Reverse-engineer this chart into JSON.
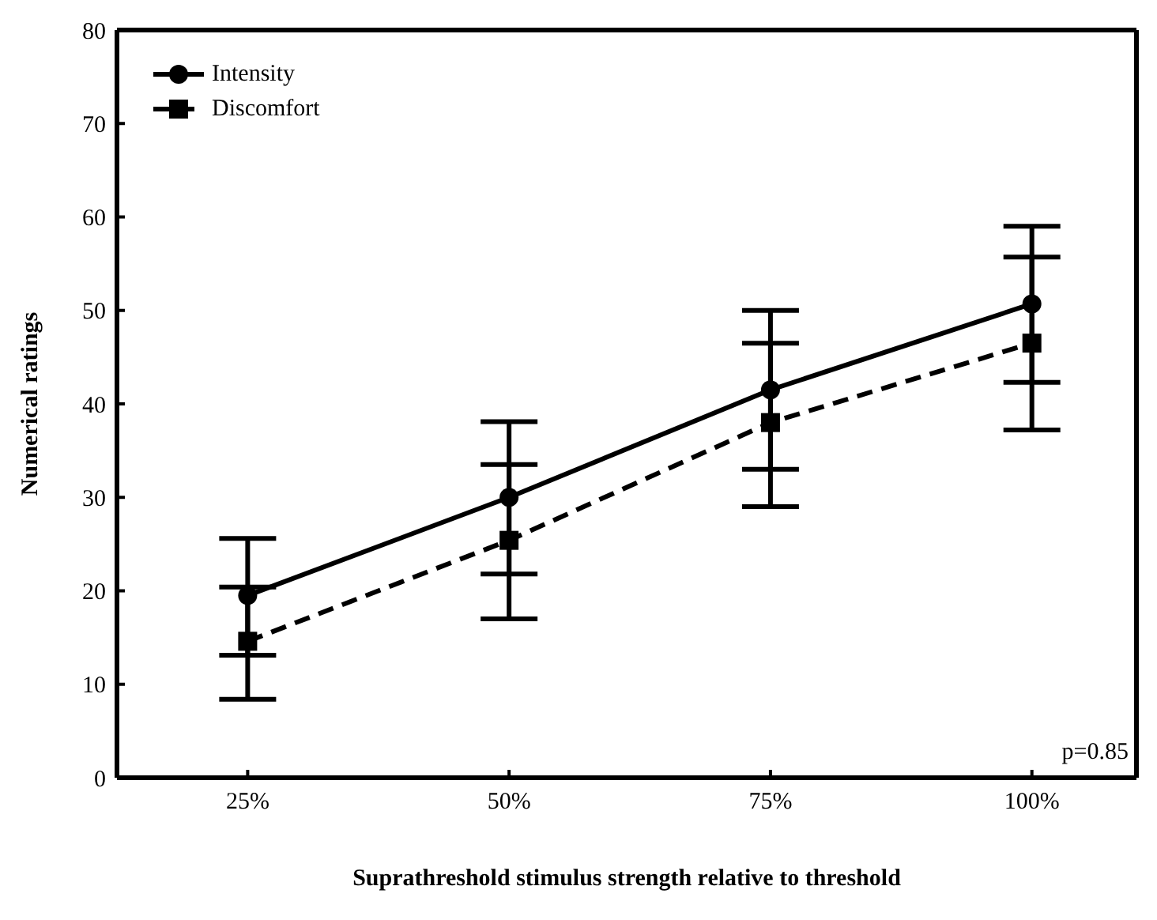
{
  "chart_data": {
    "type": "line",
    "xlabel": "Suprathreshold stimulus strength relative to threshold",
    "ylabel": "Numerical ratings",
    "categories": [
      "25%",
      "50%",
      "75%",
      "100%"
    ],
    "ylim": [
      0,
      80
    ],
    "yticks": [
      0,
      10,
      20,
      30,
      40,
      50,
      60,
      70,
      80
    ],
    "grid": false,
    "legend": "top left",
    "annotations": [
      "p=0.85"
    ],
    "series": [
      {
        "name": "Intensity",
        "color": "#000000",
        "marker": "circle",
        "line_style": "solid",
        "values": [
          19.5,
          30.0,
          41.5,
          50.7
        ],
        "errors": [
          [
            13.1,
            25.6
          ],
          [
            21.8,
            38.1
          ],
          [
            33.0,
            50.0
          ],
          [
            42.3,
            59.0
          ]
        ]
      },
      {
        "name": "Discomfort",
        "color": "#000000",
        "marker": "square",
        "line_style": "dashed",
        "values": [
          14.6,
          25.4,
          38.0,
          46.5
        ],
        "errors": [
          [
            8.4,
            20.4
          ],
          [
            17.0,
            33.5
          ],
          [
            29.0,
            46.5
          ],
          [
            37.2,
            55.7
          ]
        ]
      }
    ]
  }
}
